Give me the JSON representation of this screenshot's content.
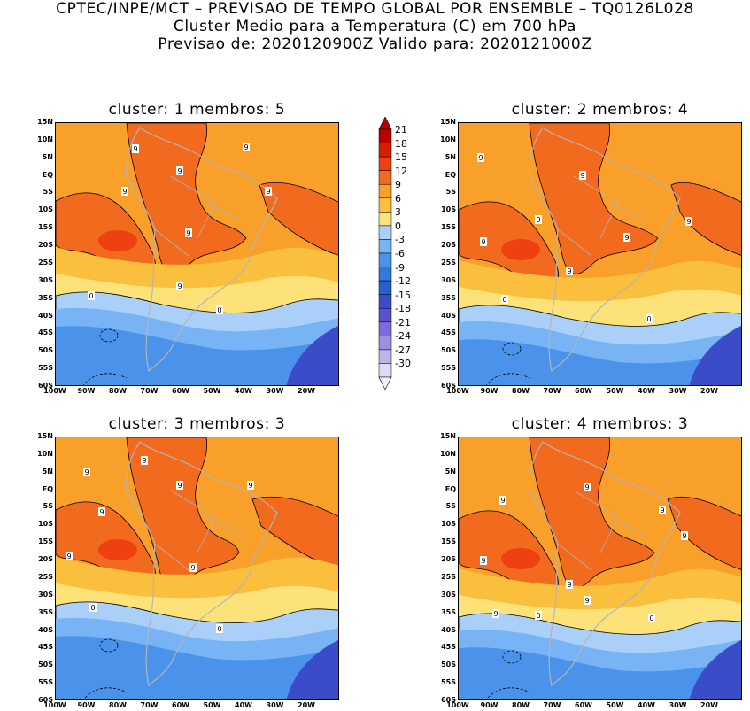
{
  "header": {
    "line1": "CPTEC/INPE/MCT – PREVISAO DE TEMPO GLOBAL POR ENSEMBLE – TQ0126L028",
    "line2": "Cluster Medio para a Temperatura (C) em 700 hPa",
    "line3": "Previsao de: 2020120900Z   Valido para: 2020121000Z"
  },
  "panels": [
    {
      "title": "cluster: 1   membros: 5",
      "contour_labels": [
        "9",
        "9",
        "9",
        "9",
        "9",
        "9",
        "9",
        "0",
        "0"
      ]
    },
    {
      "title": "cluster: 2   membros: 4",
      "contour_labels": [
        "9",
        "9",
        "9",
        "9",
        "9",
        "9",
        "9",
        "0",
        "0"
      ]
    },
    {
      "title": "cluster: 3   membros: 3",
      "contour_labels": [
        "9",
        "9",
        "9",
        "9",
        "9",
        "9",
        "9",
        "0",
        "0"
      ]
    },
    {
      "title": "cluster: 4   membros: 3",
      "contour_labels": [
        "9",
        "9",
        "9",
        "9",
        "9",
        "9",
        "9",
        "9",
        "0",
        "0"
      ]
    }
  ],
  "lat_ticks": [
    "15N",
    "10N",
    "5N",
    "EQ",
    "5S",
    "10S",
    "15S",
    "20S",
    "25S",
    "30S",
    "35S",
    "40S",
    "45S",
    "50S",
    "55S",
    "60S"
  ],
  "lon_ticks": [
    "100W",
    "90W",
    "80W",
    "70W",
    "60W",
    "50W",
    "40W",
    "30W",
    "20W"
  ],
  "colorbar": {
    "labels": [
      "21",
      "18",
      "15",
      "12",
      "9",
      "6",
      "3",
      "0",
      "-3",
      "-6",
      "-9",
      "-12",
      "-15",
      "-18",
      "-21",
      "-24",
      "-27",
      "-30"
    ],
    "colors": [
      "#b80000",
      "#d81e00",
      "#ee4010",
      "#f26a1e",
      "#f9a02a",
      "#fbbf3e",
      "#fde27a",
      "#aacff8",
      "#78b4f5",
      "#4b93ea",
      "#3478dd",
      "#2a5fd0",
      "#3b4cc8",
      "#5b4fd2",
      "#7c6ed8",
      "#9c8fe0",
      "#bdb4ea",
      "#dddaf5"
    ]
  }
}
